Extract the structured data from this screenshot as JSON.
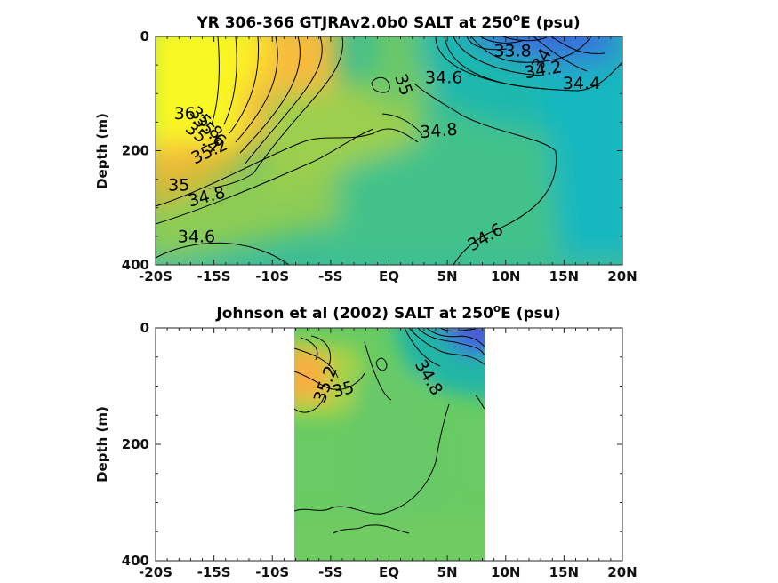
{
  "chart_data": [
    {
      "type": "heatmap",
      "panel": "top",
      "title_main": "YR 306-366 GTJRAv2.0b0 SALT at 250",
      "title_sup": "o",
      "title_end": "E (psu)",
      "ylabel": "Depth (m)",
      "x_ticks": [
        "-20S",
        "-15S",
        "-10S",
        "-5S",
        "EQ",
        "5N",
        "10N",
        "15N",
        "20N"
      ],
      "x_tick_values": [
        -20,
        -15,
        -10,
        -5,
        0,
        5,
        10,
        15,
        20
      ],
      "y_ticks": [
        "0",
        "200",
        "400"
      ],
      "y_tick_values": [
        0,
        200,
        400
      ],
      "xlim": [
        -20,
        20
      ],
      "ylim": [
        0,
        400
      ],
      "data_extent": [
        -20,
        20
      ],
      "contour_labels": [
        {
          "text": "36",
          "lat": -17.5,
          "depth": 145,
          "rot": 0
        },
        {
          "text": "35.8",
          "lat": -16.0,
          "depth": 158,
          "rot": 45
        },
        {
          "text": "35.6",
          "lat": -15.7,
          "depth": 172,
          "rot": 45
        },
        {
          "text": "35.4",
          "lat": -16.3,
          "depth": 185,
          "rot": 40
        },
        {
          "text": "35.2",
          "lat": -15.2,
          "depth": 210,
          "rot": -25
        },
        {
          "text": "35",
          "lat": -18.0,
          "depth": 270,
          "rot": 0
        },
        {
          "text": "34.8",
          "lat": -15.5,
          "depth": 290,
          "rot": -15
        },
        {
          "text": "34.6",
          "lat": -16.5,
          "depth": 360,
          "rot": 0
        },
        {
          "text": "35",
          "lat": 0.8,
          "depth": 88,
          "rot": 70
        },
        {
          "text": "34.6",
          "lat": 4.7,
          "depth": 82,
          "rot": 0
        },
        {
          "text": "34.8",
          "lat": 4.3,
          "depth": 175,
          "rot": -5
        },
        {
          "text": "34.6",
          "lat": 8.5,
          "depth": 360,
          "rot": -30
        },
        {
          "text": "33.8",
          "lat": 10.6,
          "depth": 35,
          "rot": 0
        },
        {
          "text": "34",
          "lat": 13.5,
          "depth": 45,
          "rot": -60
        },
        {
          "text": "34.2",
          "lat": 13.3,
          "depth": 68,
          "rot": -10
        },
        {
          "text": "34.4",
          "lat": 16.5,
          "depth": 92,
          "rot": 0
        }
      ]
    },
    {
      "type": "heatmap",
      "panel": "bottom",
      "title_main": "Johnson et al (2002) SALT at 250",
      "title_sup": "o",
      "title_end": "E (psu)",
      "ylabel": "Depth (m)",
      "x_ticks": [
        "-20S",
        "-15S",
        "-10S",
        "-5S",
        "EQ",
        "5N",
        "10N",
        "15N",
        "20N"
      ],
      "x_tick_values": [
        -20,
        -15,
        -10,
        -5,
        0,
        5,
        10,
        15,
        20
      ],
      "y_ticks": [
        "0",
        "200",
        "400"
      ],
      "y_tick_values": [
        0,
        200,
        400
      ],
      "xlim": [
        -20,
        20
      ],
      "ylim": [
        0,
        400
      ],
      "data_extent": [
        -8,
        8.3
      ],
      "contour_labels": [
        {
          "text": "35.2",
          "lat": -5.0,
          "depth": 100,
          "rot": -70
        },
        {
          "text": "35",
          "lat": -3.8,
          "depth": 115,
          "rot": -15
        },
        {
          "text": "34.8",
          "lat": 3.0,
          "depth": 90,
          "rot": 60
        }
      ]
    }
  ]
}
